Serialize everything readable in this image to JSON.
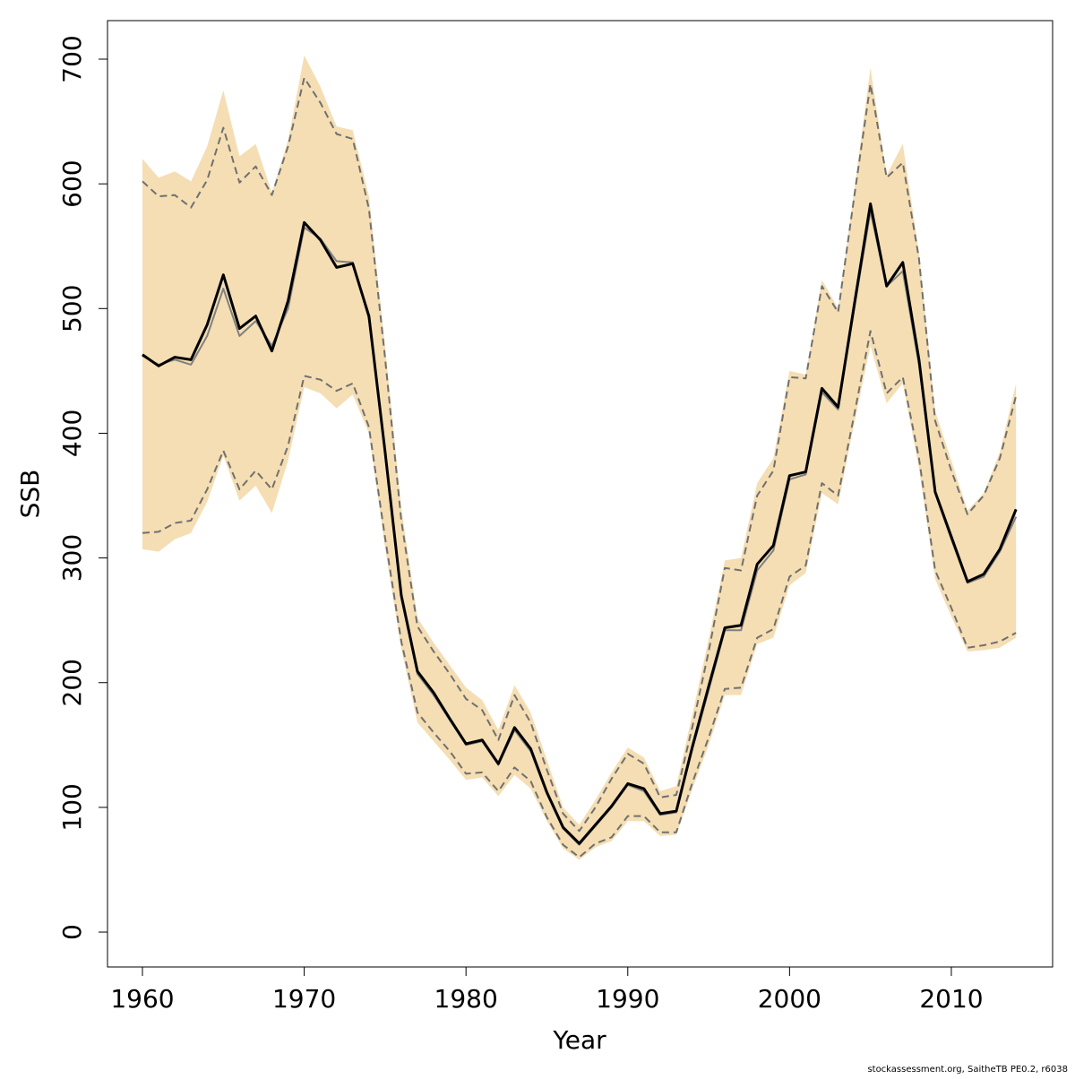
{
  "chart_data": {
    "type": "line",
    "x_label": "Year",
    "y_label": "SSB",
    "footnote": "stockassessment.org, SaitheTB  PE0.2, r6038",
    "x": [
      1960,
      1961,
      1962,
      1963,
      1964,
      1965,
      1966,
      1967,
      1968,
      1969,
      1970,
      1971,
      1972,
      1973,
      1974,
      1975,
      1976,
      1977,
      1978,
      1979,
      1980,
      1981,
      1982,
      1983,
      1984,
      1985,
      1986,
      1987,
      1988,
      1989,
      1990,
      1991,
      1992,
      1993,
      1994,
      1995,
      1996,
      1997,
      1998,
      1999,
      2000,
      2001,
      2002,
      2003,
      2004,
      2005,
      2006,
      2007,
      2008,
      2009,
      2010,
      2011,
      2012,
      2013,
      2014
    ],
    "band": {
      "color": "#f5deb3",
      "upper": [
        620,
        605,
        610,
        602,
        630,
        675,
        622,
        632,
        593,
        635,
        703,
        678,
        646,
        643,
        590,
        470,
        340,
        252,
        232,
        214,
        196,
        186,
        162,
        198,
        176,
        138,
        100,
        86,
        106,
        128,
        148,
        140,
        113,
        117,
        175,
        235,
        298,
        300,
        360,
        380,
        450,
        447,
        523,
        500,
        595,
        693,
        607,
        632,
        545,
        418,
        378,
        338,
        352,
        385,
        440
      ],
      "lower": [
        307,
        305,
        315,
        320,
        345,
        382,
        346,
        358,
        336,
        378,
        437,
        432,
        420,
        431,
        400,
        308,
        227,
        168,
        153,
        138,
        122,
        124,
        109,
        126,
        115,
        89,
        67,
        58,
        68,
        73,
        89,
        89,
        77,
        78,
        115,
        150,
        190,
        190,
        231,
        236,
        278,
        288,
        352,
        343,
        408,
        470,
        424,
        440,
        372,
        283,
        253,
        225,
        226,
        228,
        236
      ]
    },
    "series": [
      {
        "color": "#707070",
        "dash": true,
        "width": 2,
        "values": [
          602,
          590,
          591,
          581,
          603,
          645,
          601,
          614,
          591,
          630,
          685,
          665,
          640,
          636,
          580,
          460,
          330,
          245,
          225,
          207,
          187,
          178,
          154,
          190,
          168,
          130,
          95,
          81,
          100,
          123,
          143,
          135,
          108,
          110,
          165,
          225,
          292,
          290,
          350,
          370,
          445,
          444,
          518,
          497,
          590,
          680,
          605,
          617,
          540,
          410,
          370,
          335,
          350,
          380,
          430
        ]
      },
      {
        "color": "#707070",
        "dash": true,
        "width": 2,
        "values": [
          320,
          321,
          328,
          330,
          355,
          386,
          355,
          370,
          355,
          390,
          446,
          443,
          434,
          440,
          405,
          316,
          233,
          176,
          160,
          145,
          127,
          128,
          113,
          132,
          121,
          92,
          70,
          60,
          71,
          76,
          93,
          93,
          80,
          80,
          120,
          156,
          195,
          196,
          236,
          243,
          285,
          294,
          360,
          350,
          415,
          482,
          432,
          445,
          380,
          290,
          260,
          228,
          230,
          233,
          240
        ]
      },
      {
        "color": "#808080",
        "dash": false,
        "width": 2,
        "values": [
          462,
          455,
          459,
          455,
          478,
          516,
          478,
          490,
          470,
          500,
          565,
          556,
          538,
          537,
          492,
          383,
          268,
          207,
          190,
          170,
          150,
          153,
          134,
          162,
          145,
          111,
          83,
          70,
          85,
          100,
          118,
          113,
          94,
          96,
          147,
          194,
          242,
          242,
          290,
          306,
          363,
          367,
          433,
          419,
          500,
          578,
          518,
          530,
          455,
          352,
          315,
          280,
          285,
          305,
          333
        ]
      },
      {
        "color": "#000000",
        "dash": false,
        "width": 3,
        "values": [
          463,
          454,
          461,
          459,
          487,
          527,
          484,
          494,
          466,
          506,
          569,
          555,
          533,
          536,
          494,
          385,
          270,
          209,
          192,
          171,
          151,
          154,
          135,
          164,
          147,
          112,
          84,
          71,
          86,
          101,
          119,
          115,
          95,
          97,
          149,
          197,
          244,
          246,
          295,
          310,
          366,
          369,
          436,
          421,
          503,
          584,
          518,
          537,
          459,
          353,
          317,
          281,
          287,
          307,
          339
        ]
      }
    ],
    "xlim": [
      1957.84,
      2016.26
    ],
    "ylim": [
      -28,
      730.9
    ],
    "xticks": [
      1960,
      1970,
      1980,
      1990,
      2000,
      2010
    ],
    "yticks": [
      0,
      100,
      200,
      300,
      400,
      500,
      600,
      700
    ]
  }
}
